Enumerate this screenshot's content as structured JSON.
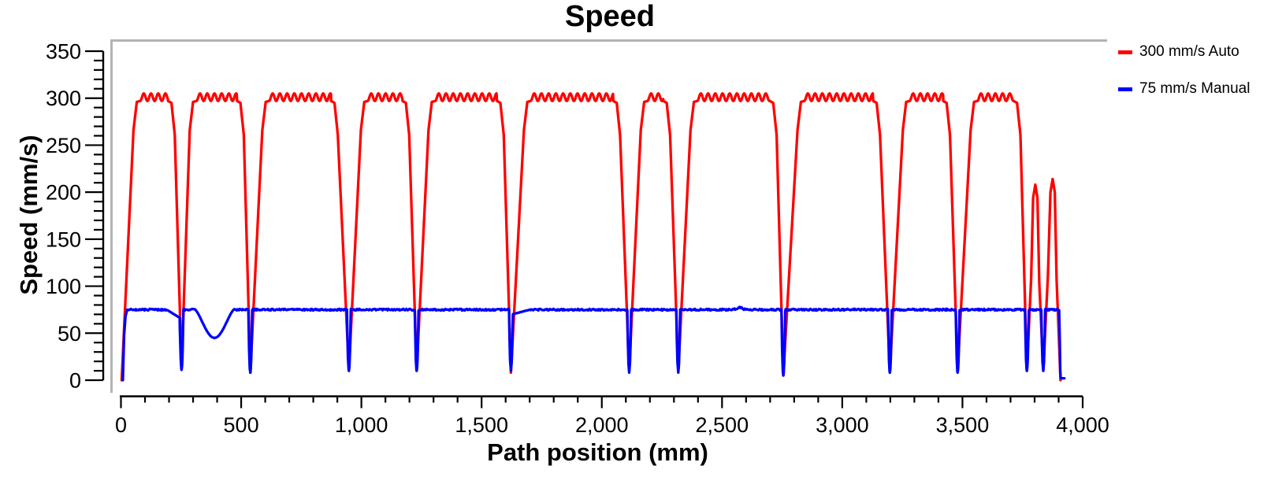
{
  "title": "Speed",
  "colors": {
    "background": "#ffffff",
    "axis": "#000000",
    "frame": "#b3b3b3",
    "series_auto": "#ff0000",
    "series_manual": "#0000ff"
  },
  "legend": {
    "items": [
      {
        "label": "300 mm/s Auto",
        "color": "#ff0000"
      },
      {
        "label": "75 mm/s Manual",
        "color": "#0000ff"
      }
    ]
  },
  "chart_data": {
    "type": "line",
    "title": "Speed",
    "xlabel": "Path position (mm)",
    "ylabel": "Speed (mm/s)",
    "xlim": [
      0,
      4000
    ],
    "ylim": [
      0,
      350
    ],
    "grid": false,
    "legend_position": "top-right-outside",
    "x_ticks": {
      "values": [
        0,
        500,
        1000,
        1500,
        2000,
        2500,
        3000,
        3500,
        4000
      ],
      "labels": [
        "0",
        "500",
        "1,000",
        "1,500",
        "2,000",
        "2,500",
        "3,000",
        "3,500",
        "4,000"
      ],
      "minor_step": 100
    },
    "y_ticks": {
      "values": [
        0,
        50,
        100,
        150,
        200,
        250,
        300,
        350
      ],
      "labels": [
        "0",
        "50",
        "100",
        "150",
        "200",
        "250",
        "300",
        "350"
      ],
      "minor_step": 10
    },
    "series": [
      {
        "name": "300 mm/s Auto",
        "color": "#ff0000",
        "style": "solid",
        "description": "Repeated trapezoidal speed pulses: ramps to ~300 mm/s plateau with ~+/-4 mm/s ripple, sharp V-drops to ~5-13 mm/s between path segments; two short final peaks reach only ~208 and ~214 mm/s before stopping at ~3910 mm.",
        "level_default": 301,
        "ripple": {
          "amplitude": 4,
          "period": 30,
          "shoulder": 14
        },
        "pulses": [
          {
            "start_x": 3,
            "start_y": 0,
            "plateau": [
              66,
              210
            ],
            "level": 301,
            "dip_x": 252,
            "dip_y": 13
          },
          {
            "plateau": [
              300,
              497
            ],
            "level": 301,
            "dip_x": 538,
            "dip_y": 8
          },
          {
            "plateau": [
              602,
              888
            ],
            "level": 301,
            "dip_x": 948,
            "dip_y": 10
          },
          {
            "plateau": [
              1012,
              1185
            ],
            "level": 301,
            "dip_x": 1230,
            "dip_y": 10
          },
          {
            "plateau": [
              1293,
              1578
            ],
            "level": 301,
            "dip_x": 1622,
            "dip_y": 8
          },
          {
            "plateau": [
              1690,
              2062
            ],
            "level": 301,
            "dip_x": 2114,
            "dip_y": 10
          },
          {
            "plateau": [
              2176,
              2270
            ],
            "level": 301,
            "dip_x": 2318,
            "dip_y": 10
          },
          {
            "plateau": [
              2383,
              2713
            ],
            "level": 301,
            "dip_x": 2755,
            "dip_y": 5
          },
          {
            "plateau": [
              2828,
              3143
            ],
            "level": 301,
            "dip_x": 3198,
            "dip_y": 8
          },
          {
            "plateau": [
              3266,
              3434
            ],
            "level": 301,
            "dip_x": 3480,
            "dip_y": 10
          },
          {
            "plateau": [
              3548,
              3727
            ],
            "level": 301,
            "dip_x": 3768,
            "dip_y": 10
          }
        ],
        "end_peaks": [
          {
            "peak_x": 3803,
            "peak_y": 208,
            "dip_x": 3836,
            "dip_y": 10
          },
          {
            "peak_x": 3875,
            "peak_y": 214,
            "dip_x": 3908,
            "dip_y": 0
          }
        ]
      },
      {
        "name": "75 mm/s Manual",
        "color": "#0000ff",
        "style": "solid",
        "description": "Nearly constant ~75 mm/s with narrow sharp drops to ~5-11 mm/s at the same path positions as the red dips, one smooth sag to ~45 mm/s around x~390 mm, a tiny wiggle near x~2570 mm, ending at ~2 mm/s by x~3910 mm.",
        "baseline": 75,
        "noise_amp": 0.9,
        "start": {
          "x": 8,
          "rise_end": 26
        },
        "dip_half_width": 8,
        "dips": [
          {
            "x": 252,
            "min": 11
          },
          {
            "x": 538,
            "min": 8
          },
          {
            "x": 948,
            "min": 10
          },
          {
            "x": 1230,
            "min": 10
          },
          {
            "x": 1622,
            "min": 10
          },
          {
            "x": 2114,
            "min": 8
          },
          {
            "x": 2318,
            "min": 8
          },
          {
            "x": 2755,
            "min": 5
          },
          {
            "x": 3198,
            "min": 8
          },
          {
            "x": 3480,
            "min": 8
          },
          {
            "x": 3768,
            "min": 10
          },
          {
            "x": 3836,
            "min": 10
          }
        ],
        "sags": [
          {
            "from": 190,
            "to": 247,
            "level_start": 75,
            "level_end": 66
          },
          {
            "from": 1627,
            "to": 1700,
            "level_start": 70,
            "level_end": 75
          }
        ],
        "u_dip": {
          "from": 308,
          "to": 470,
          "min": 45
        },
        "bump": {
          "x": 2572,
          "amp": 2.5,
          "width": 18
        },
        "end": {
          "drop_x": 3903,
          "tail_y": 2,
          "end_x": 3924
        }
      }
    ]
  }
}
